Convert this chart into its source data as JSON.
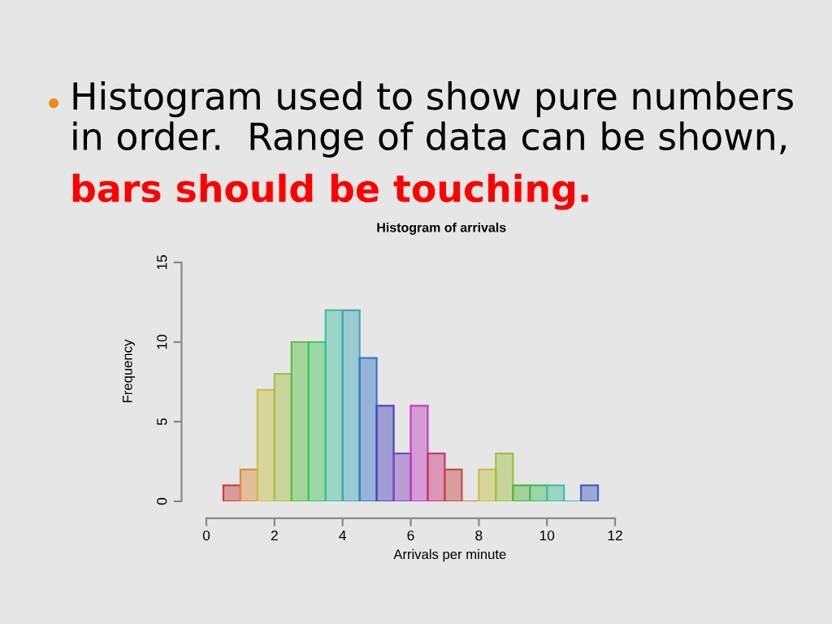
{
  "chart_data": {
    "type": "histogram",
    "title": "Histogram of arrivals",
    "xlabel": "Arrivals per minute",
    "ylabel": "Frequency",
    "annotations": [
      "Histogram used to show pure numbers in order.  Range of data can be shown,",
      "bars should be touching."
    ],
    "bins": [
      0.5,
      1,
      1.5,
      2,
      2.5,
      3,
      3.5,
      4,
      4.5,
      5,
      5.5,
      6,
      6.5,
      7,
      7.5,
      8,
      8.5,
      9,
      9.5,
      10,
      10.5,
      11,
      11.5
    ],
    "values": [
      1,
      2,
      7,
      8,
      10,
      10,
      12,
      12,
      9,
      6,
      3,
      6,
      3,
      2,
      0,
      2,
      3,
      1,
      1,
      1,
      0,
      1
    ],
    "colors": [
      "#c8413c",
      "#e08a3a",
      "#c8c040",
      "#a8c048",
      "#58c040",
      "#40c858",
      "#40c0a0",
      "#40a8b8",
      "#3878c8",
      "#4848c0",
      "#8048c0",
      "#c040c0",
      "#c83878",
      "#c84848",
      "#e07820",
      "#c8c040",
      "#a0c040",
      "#50b840",
      "#40c060",
      "#40c0a0",
      "#40b0d0",
      "#4060c0"
    ],
    "xlim": [
      0,
      12
    ],
    "ylim": [
      0,
      15
    ],
    "xticks": [
      0,
      2,
      4,
      6,
      8,
      10,
      12
    ],
    "yticks": [
      0,
      5,
      10,
      15
    ]
  }
}
